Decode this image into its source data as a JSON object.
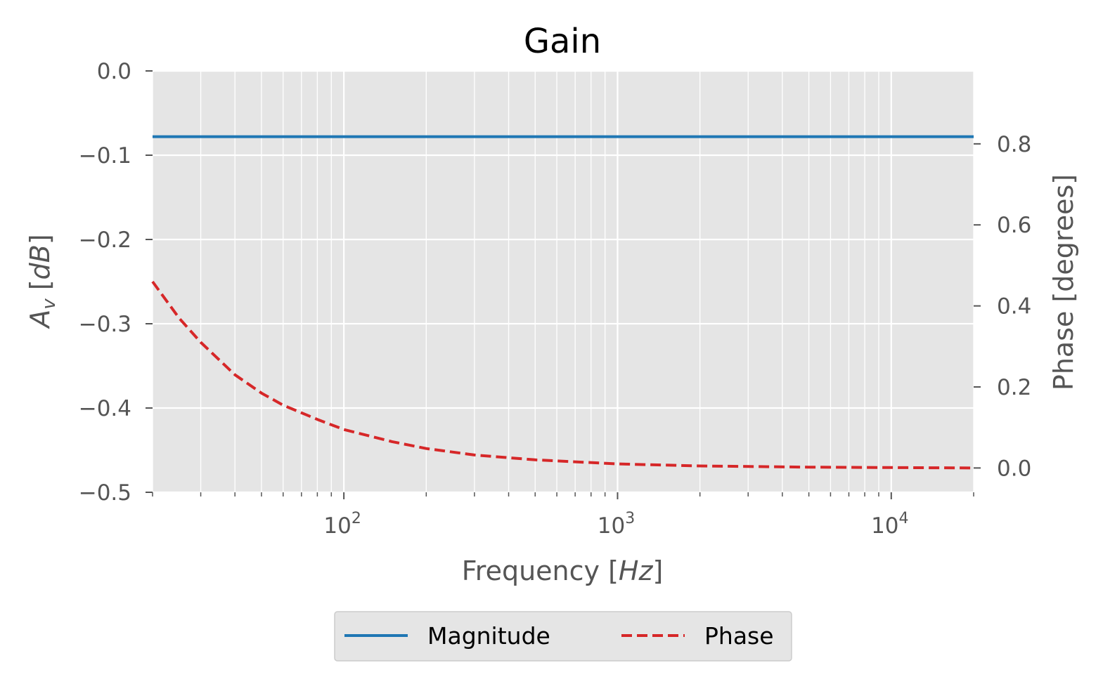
{
  "chart_data": {
    "type": "line",
    "title": "Gain",
    "xlabel": {
      "text": "Frequency",
      "unit": "Hz"
    },
    "ylabel_left": {
      "text": "A",
      "sub": "v",
      "unit": "dB"
    },
    "ylabel_right": "Phase [degrees]",
    "xscale": "log",
    "xlim": [
      20,
      20000
    ],
    "ylim_left": [
      -0.5,
      0.0
    ],
    "ylim_right": [
      -0.06,
      0.98
    ],
    "grid": true,
    "x_ticks": [
      {
        "value": 100,
        "base": "10",
        "exp": "2"
      },
      {
        "value": 1000,
        "base": "10",
        "exp": "3"
      },
      {
        "value": 10000,
        "base": "10",
        "exp": "4"
      }
    ],
    "y_ticks_left": [
      {
        "value": 0.0,
        "label": "0.0"
      },
      {
        "value": -0.1,
        "label": "−0.1"
      },
      {
        "value": -0.2,
        "label": "−0.2"
      },
      {
        "value": -0.3,
        "label": "−0.3"
      },
      {
        "value": -0.4,
        "label": "−0.4"
      },
      {
        "value": -0.5,
        "label": "−0.5"
      }
    ],
    "y_ticks_right": [
      {
        "value": 0.8,
        "label": "0.8"
      },
      {
        "value": 0.6,
        "label": "0.6"
      },
      {
        "value": 0.4,
        "label": "0.4"
      },
      {
        "value": 0.2,
        "label": "0.2"
      },
      {
        "value": 0.0,
        "label": "0.0"
      }
    ],
    "series": [
      {
        "name": "Magnitude",
        "axis": "left",
        "color": "#1f77b4",
        "style": "solid",
        "x": [
          20,
          100,
          1000,
          10000,
          20000
        ],
        "y": [
          -0.078,
          -0.078,
          -0.078,
          -0.078,
          -0.078
        ]
      },
      {
        "name": "Phase",
        "axis": "right",
        "color": "#d62728",
        "style": "dashed",
        "x": [
          20,
          25,
          30,
          40,
          50,
          60,
          80,
          100,
          150,
          200,
          300,
          500,
          1000,
          2000,
          5000,
          10000,
          20000
        ],
        "y": [
          0.46,
          0.37,
          0.31,
          0.23,
          0.185,
          0.155,
          0.12,
          0.095,
          0.065,
          0.048,
          0.032,
          0.02,
          0.01,
          0.005,
          0.002,
          0.001,
          0.0
        ]
      }
    ],
    "legend": {
      "placement": "bottom-center",
      "entries": [
        {
          "label": "Magnitude",
          "color": "#1f77b4",
          "style": "solid"
        },
        {
          "label": "Phase",
          "color": "#d62728",
          "style": "dashed"
        }
      ]
    },
    "colors": {
      "plot_bg": "#e5e5e5",
      "grid": "#ffffff",
      "text": "#555555"
    }
  }
}
